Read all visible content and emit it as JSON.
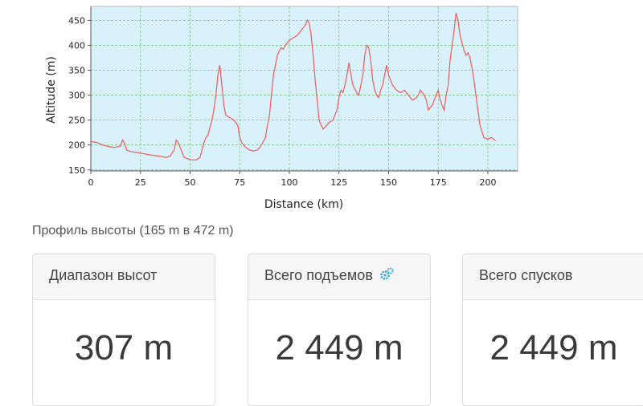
{
  "chart_data": {
    "type": "line",
    "xlabel": "Distance (km)",
    "ylabel": "Altitude (m)",
    "xlim": [
      0,
      215
    ],
    "ylim": [
      148,
      478
    ],
    "xticks": [
      0,
      25,
      50,
      75,
      100,
      125,
      150,
      175,
      200
    ],
    "yticks": [
      150,
      200,
      250,
      300,
      350,
      400,
      450
    ],
    "grid": true,
    "background": "#d9f1fb",
    "line_color": "#f05a5a",
    "series": [
      {
        "x": [
          0,
          3,
          6,
          9,
          12,
          15,
          16,
          17,
          18,
          20,
          23,
          26,
          30,
          34,
          38,
          40,
          42,
          43,
          44,
          46,
          47,
          49,
          51,
          53,
          55,
          56,
          57,
          58,
          59,
          60,
          61,
          62,
          63,
          64,
          65,
          66,
          67,
          68,
          70,
          72,
          74,
          75,
          76,
          78,
          80,
          82,
          84,
          86,
          88,
          89,
          90,
          91,
          92,
          93,
          94,
          95,
          96,
          97,
          98,
          100,
          102,
          104,
          106,
          108,
          109,
          110,
          111,
          112,
          113,
          114,
          115,
          116,
          117,
          118,
          119,
          120,
          122,
          124,
          125,
          126,
          127,
          128,
          129,
          130,
          132,
          134,
          135,
          136,
          137,
          138,
          139,
          140,
          141,
          142,
          143,
          144,
          145,
          146,
          147,
          148,
          149,
          150,
          152,
          154,
          156,
          158,
          160,
          162,
          164,
          165,
          166,
          167,
          168,
          169,
          170,
          172,
          174,
          175,
          176,
          177,
          178,
          179,
          180,
          181,
          182,
          183,
          184,
          185,
          186,
          187,
          188,
          189,
          190,
          191,
          192,
          193,
          194,
          196,
          198,
          200,
          202,
          204
        ],
        "y": [
          207,
          205,
          200,
          197,
          195,
          198,
          210,
          203,
          190,
          187,
          185,
          183,
          180,
          178,
          175,
          178,
          190,
          210,
          205,
          185,
          175,
          172,
          170,
          170,
          175,
          190,
          205,
          215,
          220,
          235,
          250,
          270,
          300,
          340,
          360,
          320,
          280,
          260,
          255,
          250,
          240,
          215,
          205,
          195,
          190,
          188,
          190,
          200,
          215,
          240,
          260,
          300,
          340,
          360,
          380,
          390,
          395,
          392,
          400,
          410,
          415,
          420,
          430,
          440,
          450,
          445,
          420,
          380,
          330,
          290,
          250,
          240,
          232,
          236,
          240,
          245,
          250,
          270,
          295,
          310,
          305,
          320,
          340,
          365,
          320,
          305,
          300,
          320,
          340,
          380,
          400,
          395,
          370,
          330,
          310,
          300,
          295,
          310,
          320,
          340,
          360,
          340,
          320,
          310,
          305,
          310,
          300,
          290,
          295,
          300,
          310,
          305,
          300,
          290,
          270,
          280,
          300,
          310,
          290,
          280,
          270,
          300,
          320,
          370,
          400,
          430,
          465,
          450,
          420,
          405,
          390,
          380,
          385,
          375,
          355,
          330,
          300,
          240,
          215,
          212,
          215,
          208
        ]
      }
    ]
  },
  "caption": "Профиль высоты (165 m в 472 m)",
  "cards": [
    {
      "label": "Диапазон высот",
      "value": "307 m"
    },
    {
      "label": "Всего подъемов",
      "value": "2 449 m"
    },
    {
      "label": "Всего спусков",
      "value": "2 449 m"
    }
  ],
  "colors": {
    "gear_icon": "#3aa7e0"
  },
  "icons": {
    "gear": "gear-icon"
  }
}
